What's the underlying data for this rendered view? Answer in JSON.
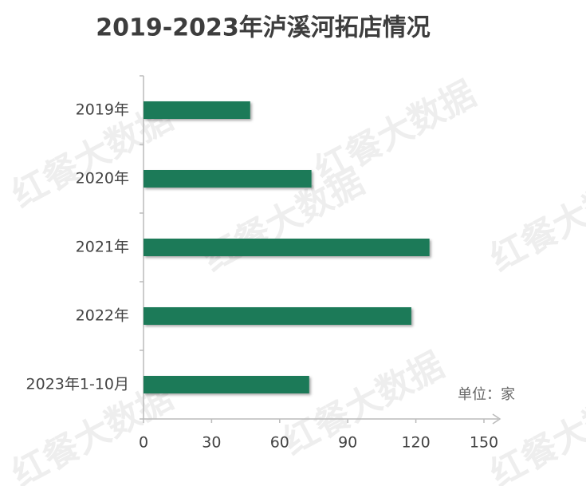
{
  "chart_data": {
    "type": "bar",
    "orientation": "horizontal",
    "title": "2019-2023年泸溪河拓店情况",
    "categories": [
      "2019年",
      "2020年",
      "2021年",
      "2022年",
      "2023年1-10月"
    ],
    "values": [
      47,
      74,
      126,
      118,
      73
    ],
    "color": "#1b7a59",
    "xlim": [
      0,
      150
    ],
    "xticks": [
      0,
      30,
      60,
      90,
      120,
      150
    ],
    "unit_label": "单位：家",
    "watermark": "红餐大数据",
    "grid": false
  }
}
